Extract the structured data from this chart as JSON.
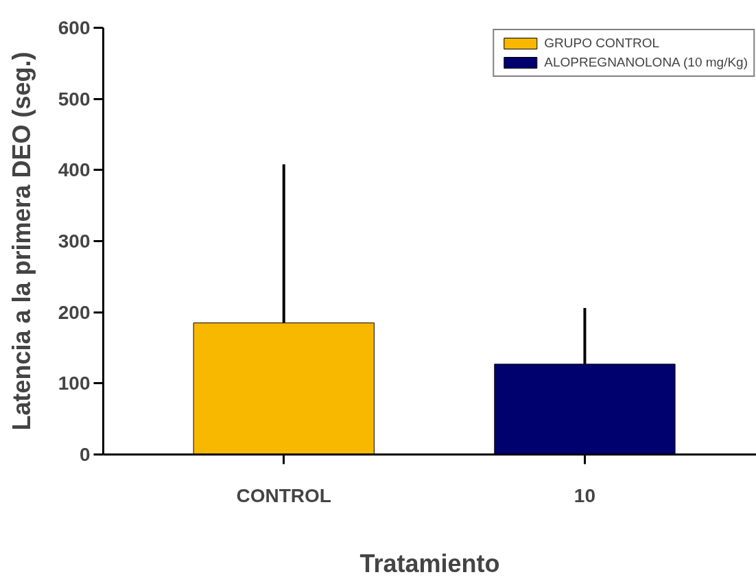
{
  "chart_data": {
    "type": "bar",
    "xlabel": "Tratamiento",
    "ylabel": "Latencia a la primera DEO (seg.)",
    "categories": [
      "CONTROL",
      "10"
    ],
    "series": [
      {
        "name": "GRUPO CONTROL",
        "color": "#f8b800",
        "values": [
          185,
          null
        ],
        "errors": [
          [
            185,
            408
          ],
          null
        ]
      },
      {
        "name": "ALOPREGNANOLONA (10 mg/Kg)",
        "color": "#00006e",
        "values": [
          null,
          127
        ],
        "errors": [
          null,
          [
            127,
            206
          ]
        ]
      }
    ],
    "ylim": [
      0,
      600
    ],
    "yticks": [
      0,
      100,
      200,
      300,
      400,
      500,
      600
    ],
    "grid": false,
    "legend": "top right"
  }
}
